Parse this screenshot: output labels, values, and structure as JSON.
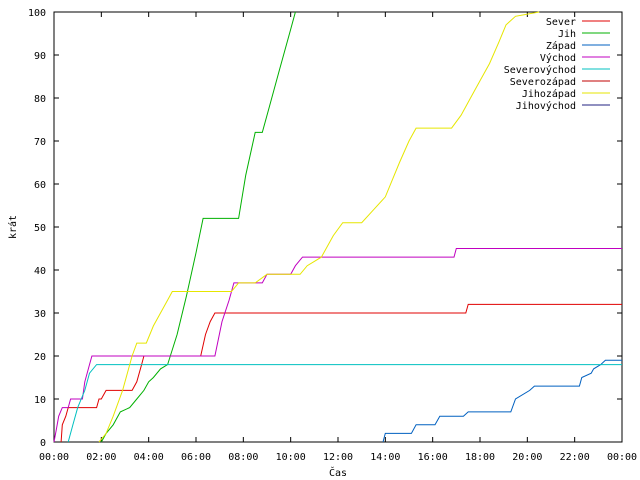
{
  "chart_data": {
    "type": "line",
    "title": "",
    "xlabel": "Čas",
    "ylabel": "krát",
    "xlim": [
      0,
      24
    ],
    "ylim": [
      0,
      100
    ],
    "x_ticks": [
      {
        "value": 0,
        "label": "00:00"
      },
      {
        "value": 2,
        "label": "02:00"
      },
      {
        "value": 4,
        "label": "04:00"
      },
      {
        "value": 6,
        "label": "06:00"
      },
      {
        "value": 8,
        "label": "08:00"
      },
      {
        "value": 10,
        "label": "10:00"
      },
      {
        "value": 12,
        "label": "12:00"
      },
      {
        "value": 14,
        "label": "14:00"
      },
      {
        "value": 16,
        "label": "16:00"
      },
      {
        "value": 18,
        "label": "18:00"
      },
      {
        "value": 20,
        "label": "20:00"
      },
      {
        "value": 22,
        "label": "22:00"
      },
      {
        "value": 24,
        "label": "00:00"
      }
    ],
    "y_ticks": [
      0,
      10,
      20,
      30,
      40,
      50,
      60,
      70,
      80,
      90,
      100
    ],
    "grid": false,
    "legend_position": "top-right",
    "series": [
      {
        "name": "Sever",
        "color": "#e00000",
        "points": [
          [
            0.3,
            0
          ],
          [
            0.35,
            4
          ],
          [
            0.5,
            6
          ],
          [
            0.6,
            8
          ],
          [
            1.0,
            8
          ],
          [
            1.8,
            8
          ],
          [
            1.9,
            10
          ],
          [
            2.0,
            10
          ],
          [
            2.2,
            12
          ],
          [
            3.3,
            12
          ],
          [
            3.5,
            14
          ],
          [
            3.7,
            18
          ],
          [
            3.8,
            20
          ],
          [
            6.2,
            20
          ],
          [
            6.4,
            25
          ],
          [
            6.6,
            28
          ],
          [
            6.8,
            30
          ],
          [
            17.4,
            30
          ],
          [
            17.5,
            32
          ],
          [
            24,
            32
          ]
        ]
      },
      {
        "name": "Jih",
        "color": "#00b000",
        "points": [
          [
            2.0,
            0
          ],
          [
            2.1,
            1
          ],
          [
            2.2,
            2
          ],
          [
            2.5,
            4
          ],
          [
            2.8,
            7
          ],
          [
            3.2,
            8
          ],
          [
            3.5,
            10
          ],
          [
            3.8,
            12
          ],
          [
            4.0,
            14
          ],
          [
            4.2,
            15
          ],
          [
            4.5,
            17
          ],
          [
            4.8,
            18
          ],
          [
            5.2,
            25
          ],
          [
            5.6,
            34
          ],
          [
            6.0,
            44
          ],
          [
            6.3,
            52
          ],
          [
            7.8,
            52
          ],
          [
            8.1,
            62
          ],
          [
            8.5,
            72
          ],
          [
            8.8,
            72
          ],
          [
            9.1,
            78
          ],
          [
            9.5,
            86
          ],
          [
            10.0,
            96
          ],
          [
            10.2,
            100
          ]
        ]
      },
      {
        "name": "Západ",
        "color": "#0060c0",
        "points": [
          [
            13.9,
            0
          ],
          [
            14.0,
            2
          ],
          [
            15.1,
            2
          ],
          [
            15.3,
            4
          ],
          [
            16.1,
            4
          ],
          [
            16.3,
            6
          ],
          [
            17.3,
            6
          ],
          [
            17.5,
            7
          ],
          [
            19.3,
            7
          ],
          [
            19.5,
            10
          ],
          [
            20.1,
            12
          ],
          [
            20.3,
            13
          ],
          [
            22.2,
            13
          ],
          [
            22.3,
            15
          ],
          [
            22.7,
            16
          ],
          [
            22.8,
            17
          ],
          [
            23.1,
            18
          ],
          [
            23.3,
            19
          ],
          [
            24,
            19
          ]
        ]
      },
      {
        "name": "Východ",
        "color": "#c000c0",
        "points": [
          [
            0,
            0
          ],
          [
            0.1,
            3
          ],
          [
            0.2,
            6
          ],
          [
            0.35,
            8
          ],
          [
            0.6,
            8
          ],
          [
            0.7,
            10
          ],
          [
            1.2,
            10
          ],
          [
            1.3,
            14
          ],
          [
            1.5,
            18
          ],
          [
            1.6,
            20
          ],
          [
            6.8,
            20
          ],
          [
            7.1,
            28
          ],
          [
            7.4,
            33
          ],
          [
            7.6,
            37
          ],
          [
            8.8,
            37
          ],
          [
            9.0,
            39
          ],
          [
            10.0,
            39
          ],
          [
            10.2,
            41
          ],
          [
            10.5,
            43
          ],
          [
            16.9,
            43
          ],
          [
            17.0,
            45
          ],
          [
            24,
            45
          ]
        ]
      },
      {
        "name": "Severovýchod",
        "color": "#00c0c0",
        "points": [
          [
            0.6,
            0
          ],
          [
            0.8,
            4
          ],
          [
            1.0,
            8
          ],
          [
            1.3,
            12
          ],
          [
            1.5,
            16
          ],
          [
            1.8,
            18
          ],
          [
            24,
            18
          ]
        ]
      },
      {
        "name": "Severozápad",
        "color": "#c00000",
        "points": []
      },
      {
        "name": "Jihozápad",
        "color": "#e6e600",
        "points": [
          [
            1.9,
            0
          ],
          [
            2.2,
            2
          ],
          [
            2.5,
            6
          ],
          [
            2.9,
            12
          ],
          [
            3.3,
            20
          ],
          [
            3.5,
            23
          ],
          [
            3.9,
            23
          ],
          [
            4.2,
            27
          ],
          [
            4.5,
            30
          ],
          [
            4.8,
            33
          ],
          [
            5.0,
            35
          ],
          [
            7.5,
            35
          ],
          [
            7.8,
            37
          ],
          [
            8.5,
            37
          ],
          [
            9.0,
            39
          ],
          [
            10.4,
            39
          ],
          [
            10.7,
            41
          ],
          [
            11.0,
            42
          ],
          [
            11.3,
            43
          ],
          [
            11.8,
            48
          ],
          [
            12.2,
            51
          ],
          [
            13.0,
            51
          ],
          [
            13.5,
            54
          ],
          [
            14.0,
            57
          ],
          [
            14.3,
            61
          ],
          [
            14.6,
            65
          ],
          [
            15.0,
            70
          ],
          [
            15.3,
            73
          ],
          [
            16.8,
            73
          ],
          [
            17.2,
            76
          ],
          [
            17.6,
            80
          ],
          [
            18.0,
            84
          ],
          [
            18.4,
            88
          ],
          [
            18.8,
            93
          ],
          [
            19.1,
            97
          ],
          [
            19.5,
            99
          ],
          [
            20.5,
            100
          ]
        ]
      },
      {
        "name": "Jihovýchod",
        "color": "#202080",
        "points": []
      }
    ]
  }
}
